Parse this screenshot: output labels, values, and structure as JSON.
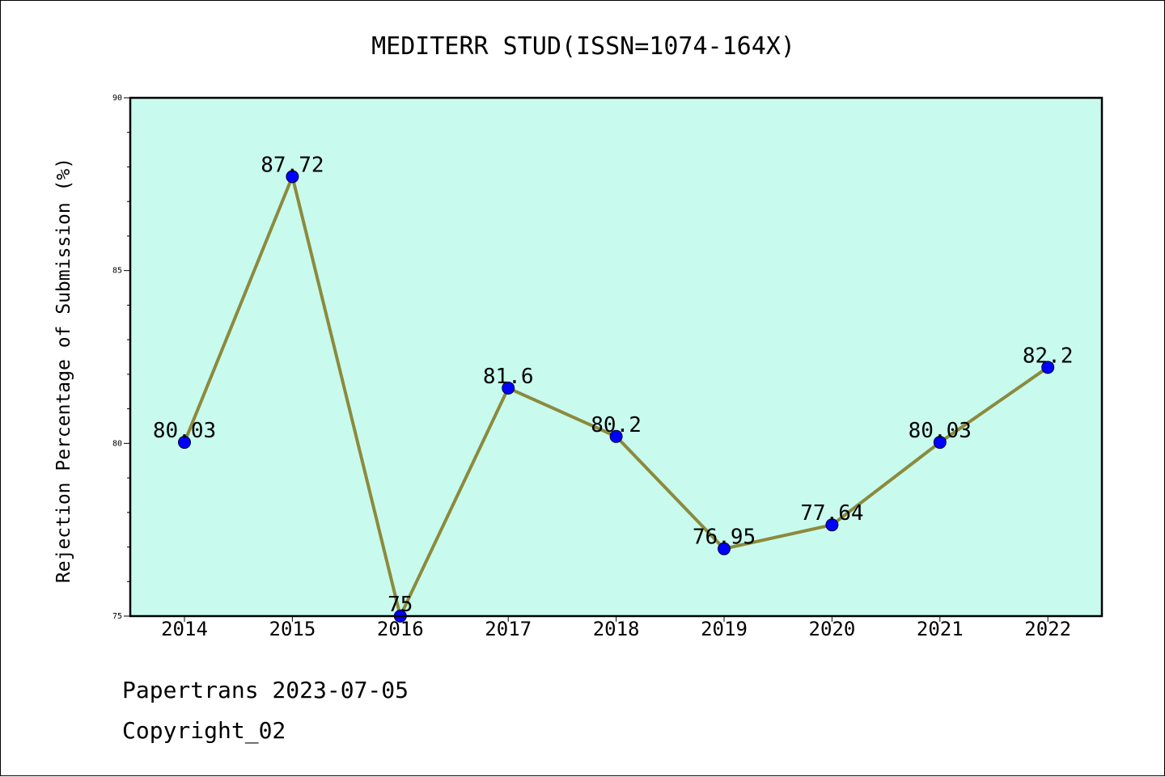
{
  "chart_data": {
    "type": "line",
    "title": "MEDITERR STUD(ISSN=1074-164X)",
    "xlabel": "",
    "ylabel": "Rejection Percentage of Submission (%)",
    "categories": [
      "2014",
      "2015",
      "2016",
      "2017",
      "2018",
      "2019",
      "2020",
      "2021",
      "2022"
    ],
    "series": [
      {
        "values": [
          80.03,
          87.72,
          75,
          81.6,
          80.2,
          76.95,
          77.64,
          80.03,
          82.2
        ],
        "labels": [
          "80.03",
          "87.72",
          "75",
          "81.6",
          "80.2",
          "76.95",
          "77.64",
          "80.03",
          "82.2"
        ],
        "line_color": "#8c8a3c",
        "marker_color": "#0000ff"
      }
    ],
    "ylim": [
      75,
      90
    ],
    "yticks": [
      "75",
      "80",
      "85",
      "90"
    ],
    "plot_background": "#c8fbee",
    "grid": false,
    "legend": "none"
  },
  "footer": {
    "source": "Papertrans 2023-07-05",
    "copyright": "Copyright_02"
  }
}
